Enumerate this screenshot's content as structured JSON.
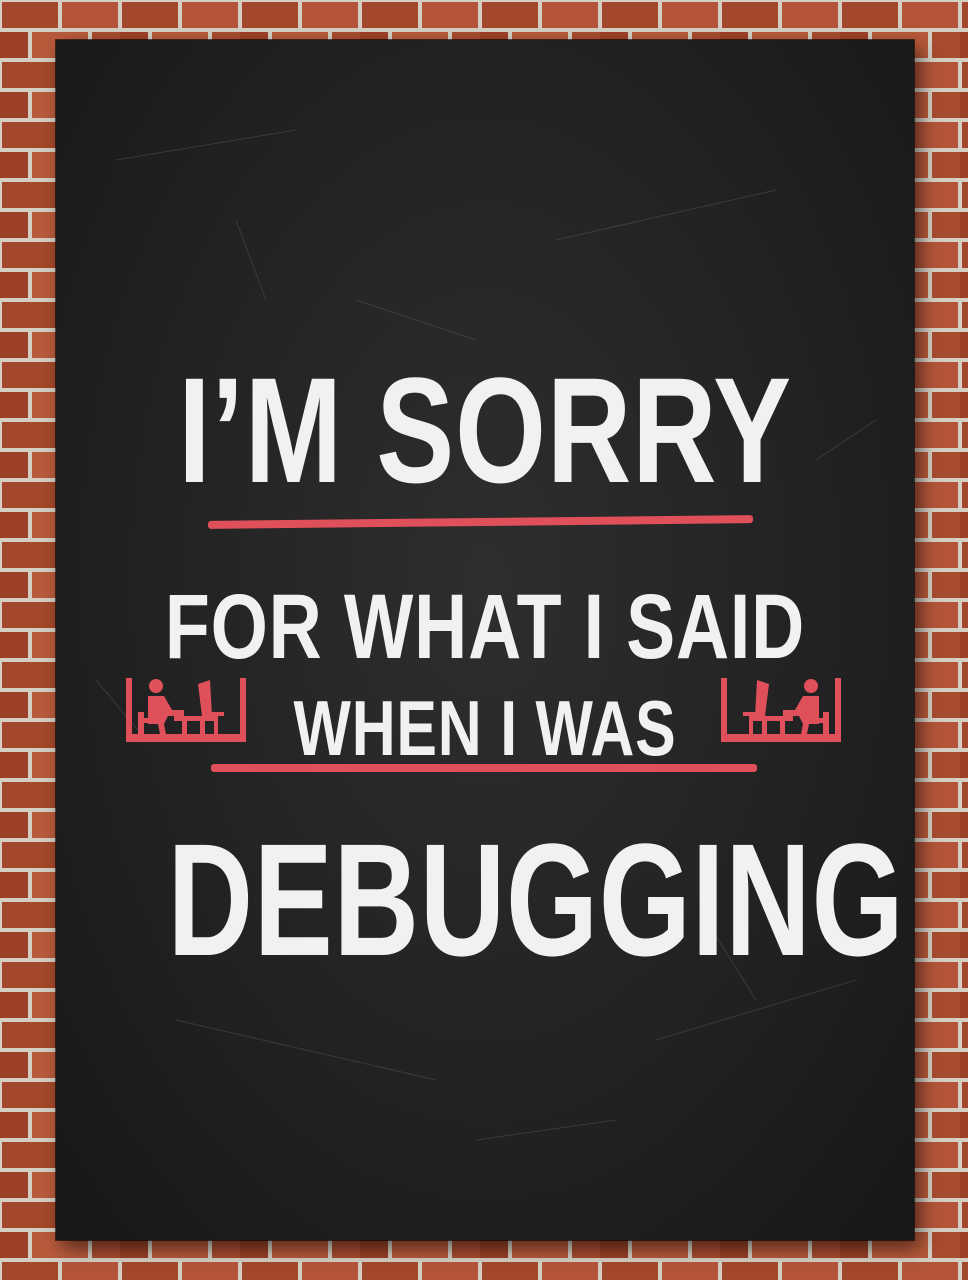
{
  "poster": {
    "line1": "I’M SORRY",
    "line2": "FOR WHAT I SAID",
    "line3": "WHEN I WAS",
    "line4": "DEBUGGING"
  },
  "icons": {
    "left": "person-at-computer-icon",
    "right": "person-at-computer-icon"
  },
  "colors": {
    "poster_background": "#222222",
    "text": "#f1f1ef",
    "accent": "#e0505a",
    "brick": "#8a3b22"
  }
}
